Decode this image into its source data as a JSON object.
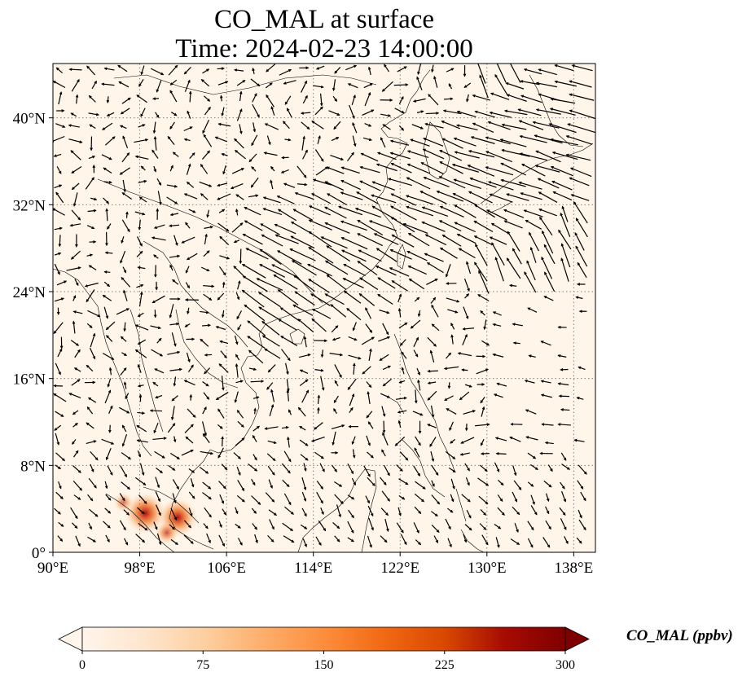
{
  "title_line1": "CO_MAL at surface",
  "title_line2": "Time: 2024-02-23 14:00:00",
  "map": {
    "lon_range": [
      90,
      140
    ],
    "lat_range": [
      0,
      45
    ],
    "lon_ticks": [
      {
        "value": 90,
        "label": "90°E"
      },
      {
        "value": 98,
        "label": "98°E"
      },
      {
        "value": 106,
        "label": "106°E"
      },
      {
        "value": 114,
        "label": "114°E"
      },
      {
        "value": 122,
        "label": "122°E"
      },
      {
        "value": 130,
        "label": "130°E"
      },
      {
        "value": 138,
        "label": "138°E"
      }
    ],
    "lat_ticks": [
      {
        "value": 0,
        "label": "0°"
      },
      {
        "value": 8,
        "label": "8°N"
      },
      {
        "value": 16,
        "label": "16°N"
      },
      {
        "value": 24,
        "label": "24°N"
      },
      {
        "value": 32,
        "label": "32°N"
      },
      {
        "value": 40,
        "label": "40°N"
      }
    ],
    "gridlines": true,
    "background_color": "#fff5e8",
    "hotspots": [
      {
        "lon": 98.5,
        "lat": 3.6,
        "value": 260
      },
      {
        "lon": 101.5,
        "lat": 3.2,
        "value": 240
      },
      {
        "lon": 100.5,
        "lat": 1.8,
        "value": 110
      },
      {
        "lon": 96.5,
        "lat": 4.6,
        "value": 80
      }
    ]
  },
  "colorbar": {
    "label": "CO_MAL (ppbv)",
    "min": 0,
    "max": 300,
    "extend": "both",
    "ticks": [
      {
        "value": 0,
        "label": "0"
      },
      {
        "value": 75,
        "label": "75"
      },
      {
        "value": 150,
        "label": "150"
      },
      {
        "value": 225,
        "label": "225"
      },
      {
        "value": 300,
        "label": "300"
      }
    ],
    "colormap": [
      "#fff5eb",
      "#fee6ce",
      "#fdd0a2",
      "#fdae6b",
      "#fd8d3c",
      "#f16913",
      "#d94801",
      "#a60b02",
      "#7f0000"
    ]
  }
}
